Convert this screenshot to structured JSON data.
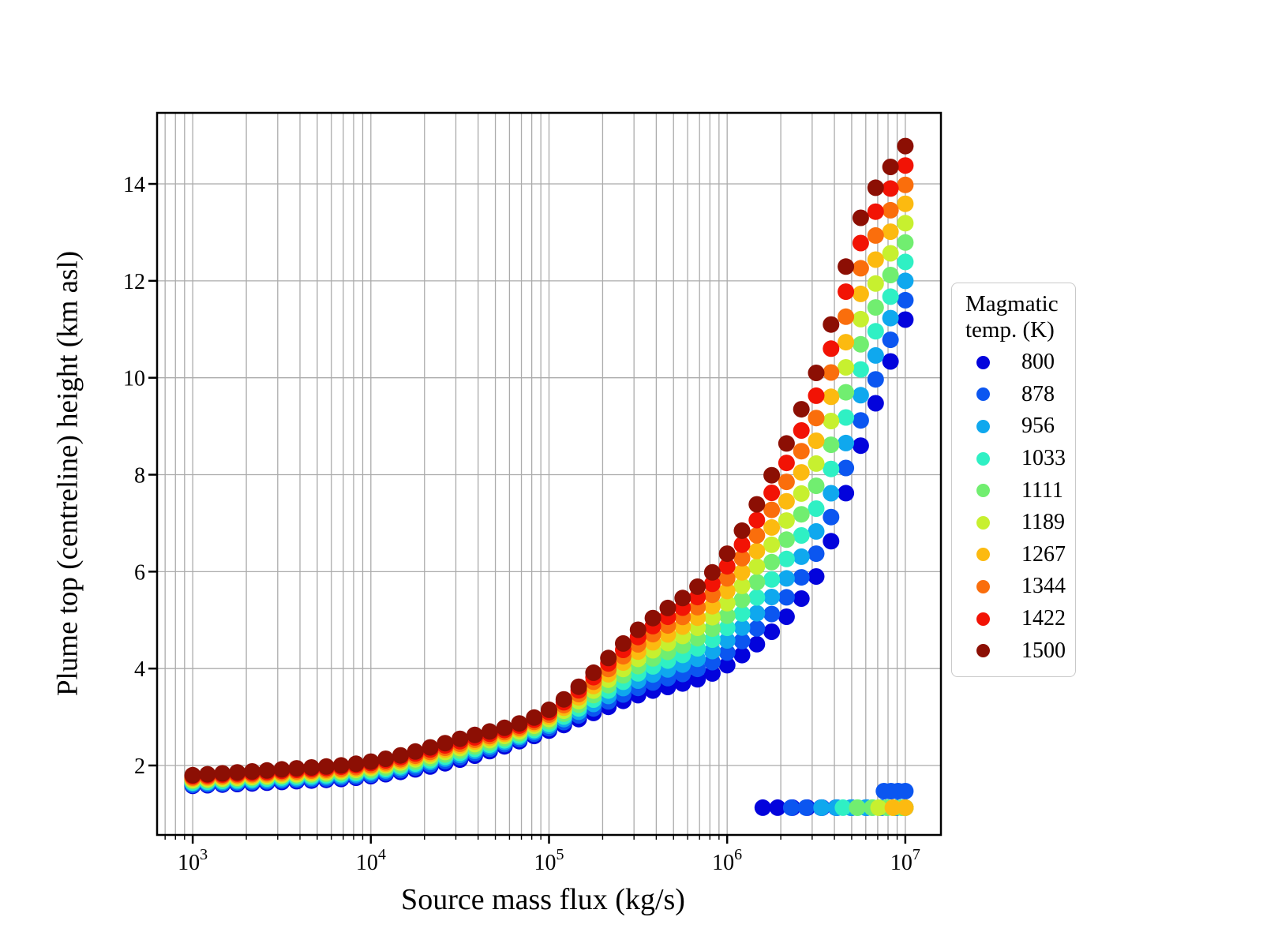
{
  "figure": {
    "background": "#ffffff"
  },
  "chart_data": {
    "type": "scatter",
    "title": "",
    "xlabel": "Source mass flux (kg/s)",
    "ylabel": "Plume top (centreline) height (km asl)",
    "x_scale": "log10",
    "x_tick_exponents": [
      3,
      4,
      5,
      6,
      7
    ],
    "x_range_log10": [
      2.8,
      7.2
    ],
    "y_ticks": [
      2,
      4,
      6,
      8,
      10,
      12,
      14
    ],
    "y_range": [
      0.567,
      15.466
    ],
    "grid": {
      "x": "major+minor",
      "y": "major",
      "color": "#ababab"
    },
    "marker_radius_px": 10.5,
    "legend": {
      "title_line1": "Magmatic",
      "title_line2": "temp. (K)",
      "position": "right-of-plot"
    },
    "log10_flux_anchors": [
      3,
      3.5,
      4,
      4.5,
      5,
      5.5,
      6,
      6.5,
      6.75,
      7
    ],
    "series": [
      {
        "temp": 800,
        "color": "#0303dc",
        "height_km": [
          1.58,
          1.66,
          1.78,
          2.12,
          2.72,
          3.45,
          4.07,
          5.9,
          8.6,
          11.2
        ]
      },
      {
        "temp": 878,
        "color": "#0b56f0",
        "height_km": [
          1.6,
          1.69,
          1.81,
          2.17,
          2.77,
          3.6,
          4.33,
          6.37,
          9.12,
          11.6
        ]
      },
      {
        "temp": 956,
        "color": "#0fa8ee",
        "height_km": [
          1.63,
          1.72,
          1.85,
          2.22,
          2.82,
          3.75,
          4.58,
          6.83,
          9.64,
          12.0
        ]
      },
      {
        "temp": 1033,
        "color": "#2ff0c4",
        "height_km": [
          1.65,
          1.75,
          1.88,
          2.26,
          2.86,
          3.9,
          4.84,
          7.3,
          10.17,
          12.39
        ]
      },
      {
        "temp": 1111,
        "color": "#71ee70",
        "height_km": [
          1.68,
          1.78,
          1.91,
          2.31,
          2.91,
          4.05,
          5.09,
          7.77,
          10.69,
          12.79
        ]
      },
      {
        "temp": 1189,
        "color": "#c7f02f",
        "height_km": [
          1.7,
          1.8,
          1.95,
          2.36,
          2.96,
          4.2,
          5.35,
          8.23,
          11.21,
          13.19
        ]
      },
      {
        "temp": 1267,
        "color": "#fcba10",
        "height_km": [
          1.73,
          1.83,
          1.98,
          2.41,
          3.01,
          4.35,
          5.6,
          8.7,
          11.73,
          13.59
        ]
      },
      {
        "temp": 1344,
        "color": "#fa6e0c",
        "height_km": [
          1.75,
          1.86,
          2.01,
          2.45,
          3.05,
          4.5,
          5.86,
          9.17,
          12.26,
          13.98
        ]
      },
      {
        "temp": 1422,
        "color": "#f21305",
        "height_km": [
          1.78,
          1.89,
          2.05,
          2.5,
          3.1,
          4.65,
          6.11,
          9.63,
          12.78,
          14.38
        ]
      },
      {
        "temp": 1500,
        "color": "#8c0f04",
        "height_km": [
          1.8,
          1.92,
          2.08,
          2.55,
          3.15,
          4.8,
          6.37,
          10.1,
          13.3,
          14.78
        ]
      }
    ],
    "collapsed_branch": {
      "description": "low-level collapsed-column points",
      "height_km": 1.13,
      "end_log10_flux": 7,
      "onsets": {
        "800": 6.2,
        "878": 6.36,
        "956": 6.53,
        "1033": 6.65,
        "1111": 6.73,
        "1189": 6.85,
        "1267": 6.93
      }
    },
    "secondary_cluster": {
      "temp": 878,
      "height_km": 1.47,
      "log10_flux_range": [
        6.88,
        7.0
      ]
    }
  }
}
